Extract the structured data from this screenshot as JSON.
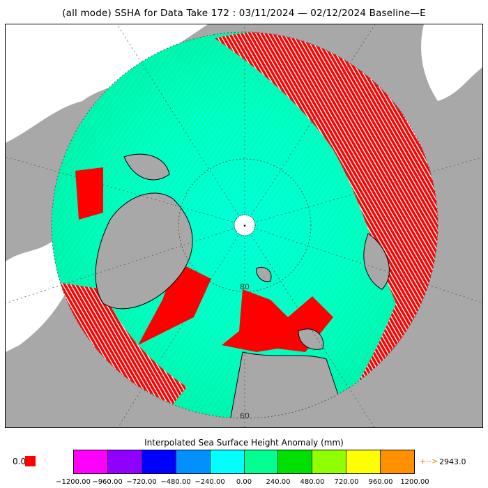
{
  "title": "(all mode) SSHA for Data Take 172 : 03/11/2024 — 02/12/2024 Baseline—E",
  "map": {
    "latitude_labels": [
      "80",
      "60"
    ],
    "center_marker": "•"
  },
  "colorbar": {
    "title": "Interpolated Sea Surface Height Anomaly (mm)",
    "zero_label": "0.0",
    "zero_color": "#ff0000",
    "colors": [
      "#ff00ff",
      "#9000ff",
      "#0000ff",
      "#0090ff",
      "#00ffff",
      "#00ff90",
      "#00e000",
      "#90ff00",
      "#ffff00",
      "#ff9000"
    ],
    "ticks": [
      "−1200.00",
      "−960.00",
      "−720.00",
      "−480.00",
      "−240.00",
      "0.00",
      "240.00",
      "480.00",
      "720.00",
      "960.00",
      "1200.00"
    ],
    "max_arrow": "+-->",
    "max_value": "2943.0"
  },
  "colors": {
    "land": "#a8a8a8",
    "ocean_outside": "#ffffff",
    "no_data_red": "#ff0000",
    "anomaly_cyan": "#00ffcc",
    "anomaly_green": "#00e000"
  }
}
